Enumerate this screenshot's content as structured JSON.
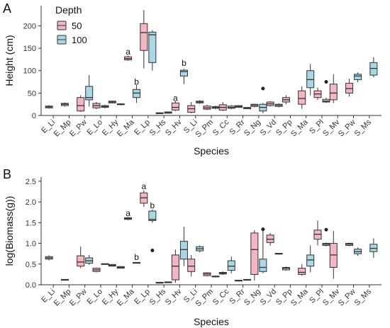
{
  "colors": {
    "series_50": "#f4b6c2",
    "series_100": "#a8d8e6",
    "edge": "#333333"
  },
  "legend": {
    "title": "Depth",
    "labels": [
      "50",
      "100"
    ]
  },
  "chart_data": [
    {
      "panel": "A",
      "type": "box",
      "xlabel": "Species",
      "ylabel": "Height (cm)",
      "ylim": [
        0,
        245
      ],
      "yticks": [
        0,
        50,
        100,
        150,
        200
      ],
      "categories": [
        "E_Li",
        "E_Mp",
        "E_Pw",
        "E_Lo",
        "E_Hy",
        "E_Ma",
        "E_Lp",
        "S_Hs",
        "S_Hv",
        "S_Li",
        "S_Pm",
        "S_Cc",
        "S_Rr",
        "S_Ng",
        "S_Vd",
        "S_Pp",
        "S_Ma",
        "S_Pl",
        "S_Mv",
        "S_Pw",
        "S_Ms"
      ],
      "series": [
        {
          "name": "50",
          "boxes": [
            {
              "category": "E_Li",
              "q1": 17,
              "median": 19,
              "q3": 21,
              "min": 15,
              "max": 23
            },
            {
              "category": "E_Mp",
              "q1": 22,
              "median": 25,
              "q3": 27,
              "min": 20,
              "max": 29
            },
            {
              "category": "E_Pw",
              "q1": 10,
              "median": 22,
              "q3": 40,
              "min": 8,
              "max": 45
            },
            {
              "category": "E_Lo",
              "q1": 17,
              "median": 22,
              "q3": 27,
              "min": 14,
              "max": 30
            },
            {
              "category": "E_Hy",
              "q1": 28,
              "median": 30,
              "q3": 32,
              "min": 27,
              "max": 33
            },
            {
              "category": "E_Ma",
              "q1": 124,
              "median": 127,
              "q3": 131,
              "min": 122,
              "max": 134
            },
            {
              "category": "E_Lp",
              "q1": 145,
              "median": 185,
              "q3": 205,
              "min": 105,
              "max": 235
            },
            {
              "category": "S_Hs",
              "q1": 4,
              "median": 5,
              "q3": 6,
              "min": 3,
              "max": 7
            },
            {
              "category": "S_Hv",
              "q1": 12,
              "median": 18,
              "q3": 28,
              "min": 10,
              "max": 32
            },
            {
              "category": "S_Li",
              "q1": 7,
              "median": 15,
              "q3": 22,
              "min": 5,
              "max": 30
            },
            {
              "category": "S_Pm",
              "q1": 14,
              "median": 17,
              "q3": 21,
              "min": 12,
              "max": 24
            },
            {
              "category": "S_Cc",
              "q1": 12,
              "median": 18,
              "q3": 24,
              "min": 10,
              "max": 30
            },
            {
              "category": "S_Rr",
              "q1": 18,
              "median": 20,
              "q3": 22,
              "min": 17,
              "max": 23
            },
            {
              "category": "S_Ng",
              "q1": 20,
              "median": 23,
              "q3": 25,
              "min": 18,
              "max": 26
            },
            {
              "category": "S_Vd",
              "q1": 22,
              "median": 26,
              "q3": 30,
              "min": 20,
              "max": 32
            },
            {
              "category": "S_Pp",
              "q1": 30,
              "median": 35,
              "q3": 40,
              "min": 25,
              "max": 45
            },
            {
              "category": "S_Ma",
              "q1": 25,
              "median": 38,
              "q3": 55,
              "min": 15,
              "max": 65
            },
            {
              "category": "S_Pl",
              "q1": 40,
              "median": 48,
              "q3": 55,
              "min": 35,
              "max": 62
            },
            {
              "category": "S_Mv",
              "q1": 35,
              "median": 50,
              "q3": 70,
              "min": 28,
              "max": 92
            },
            {
              "category": "S_Pw",
              "q1": 50,
              "median": 60,
              "q3": 72,
              "min": 42,
              "max": 82
            },
            {
              "category": "S_Ms",
              "q1": 0,
              "median": 0,
              "q3": 0,
              "min": 0,
              "max": 0,
              "absent": true
            }
          ]
        },
        {
          "name": "100",
          "boxes": [
            {
              "category": "E_Li",
              "absent": true
            },
            {
              "category": "E_Mp",
              "absent": true
            },
            {
              "category": "E_Pw",
              "q1": 35,
              "median": 40,
              "q3": 65,
              "min": 20,
              "max": 90
            },
            {
              "category": "E_Lo",
              "q1": 18,
              "median": 20,
              "q3": 22,
              "min": 16,
              "max": 24
            },
            {
              "category": "E_Hy",
              "q1": 24,
              "median": 25,
              "q3": 26,
              "min": 23,
              "max": 27
            },
            {
              "category": "E_Ma",
              "q1": 40,
              "median": 50,
              "q3": 58,
              "min": 28,
              "max": 68
            },
            {
              "category": "E_Lp",
              "q1": 118,
              "median": 180,
              "q3": 186,
              "min": 100,
              "max": 190
            },
            {
              "category": "S_Hs",
              "q1": 5,
              "median": 6,
              "q3": 8,
              "min": 4,
              "max": 9
            },
            {
              "category": "S_Hv",
              "q1": 88,
              "median": 98,
              "q3": 101,
              "min": 70,
              "max": 104
            },
            {
              "category": "S_Li",
              "q1": 28,
              "median": 30,
              "q3": 32,
              "min": 26,
              "max": 34
            },
            {
              "category": "S_Pm",
              "q1": 16,
              "median": 18,
              "q3": 20,
              "min": 14,
              "max": 22
            },
            {
              "category": "S_Cc",
              "q1": 16,
              "median": 18,
              "q3": 21,
              "min": 14,
              "max": 23
            },
            {
              "category": "S_Rr",
              "q1": 15,
              "median": 16,
              "q3": 18,
              "min": 14,
              "max": 19
            },
            {
              "category": "S_Ng",
              "q1": 10,
              "median": 18,
              "q3": 25,
              "min": 5,
              "max": 28,
              "outliers": [
                60
              ]
            },
            {
              "category": "S_Vd",
              "q1": 20,
              "median": 23,
              "q3": 25,
              "min": 18,
              "max": 27
            },
            {
              "category": "S_Pp",
              "absent": true
            },
            {
              "category": "S_Ma",
              "q1": 62,
              "median": 80,
              "q3": 100,
              "min": 45,
              "max": 115
            },
            {
              "category": "S_Pl",
              "q1": 30,
              "median": 32,
              "q3": 36,
              "min": 28,
              "max": 40,
              "outliers": [
                75
              ]
            },
            {
              "category": "S_Mv",
              "absent": true
            },
            {
              "category": "S_Pw",
              "q1": 80,
              "median": 88,
              "q3": 92,
              "min": 74,
              "max": 96
            },
            {
              "category": "S_Ms",
              "q1": 90,
              "median": 105,
              "q3": 118,
              "min": 85,
              "max": 130
            }
          ]
        }
      ],
      "annotations": [
        {
          "category": "E_Ma",
          "series": "50",
          "text": "a",
          "value": 142
        },
        {
          "category": "E_Ma",
          "series": "100",
          "text": "b",
          "value": 75
        },
        {
          "category": "S_Hv",
          "series": "50",
          "text": "a",
          "value": 39
        },
        {
          "category": "S_Hv",
          "series": "100",
          "text": "b",
          "value": 117
        }
      ]
    },
    {
      "panel": "B",
      "type": "box",
      "xlabel": "Species",
      "ylabel": "log(Biomass(g))",
      "ylim": [
        0,
        2.6
      ],
      "yticks": [
        0.0,
        0.5,
        1.0,
        1.5,
        2.0,
        2.5
      ],
      "categories": [
        "E_Li",
        "E_Mp",
        "E_Pw",
        "E_Lo",
        "E_Hy",
        "E_Ma",
        "E_Lp",
        "S_Hs",
        "S_Hv",
        "S_Li",
        "S_Pm",
        "S_Cc",
        "S_Rr",
        "S_Ng",
        "S_Vd",
        "S_Pp",
        "S_Ma",
        "S_Pl",
        "S_Mv",
        "S_Pw",
        "S_Ms"
      ],
      "series": [
        {
          "name": "50",
          "boxes": [
            {
              "category": "E_Li",
              "q1": 0.62,
              "median": 0.65,
              "q3": 0.68,
              "min": 0.59,
              "max": 0.71
            },
            {
              "category": "E_Mp",
              "q1": 0.11,
              "median": 0.12,
              "q3": 0.13,
              "min": 0.11,
              "max": 0.13
            },
            {
              "category": "E_Pw",
              "q1": 0.45,
              "median": 0.55,
              "q3": 0.7,
              "min": 0.4,
              "max": 0.92
            },
            {
              "category": "E_Lo",
              "q1": 0.32,
              "median": 0.36,
              "q3": 0.4,
              "min": 0.3,
              "max": 0.42
            },
            {
              "category": "E_Hy",
              "q1": 0.45,
              "median": 0.47,
              "q3": 0.49,
              "min": 0.44,
              "max": 0.5
            },
            {
              "category": "E_Ma",
              "q1": 1.58,
              "median": 1.6,
              "q3": 1.62,
              "min": 1.56,
              "max": 1.64
            },
            {
              "category": "E_Lp",
              "q1": 1.97,
              "median": 2.1,
              "q3": 2.22,
              "min": 1.88,
              "max": 2.28
            },
            {
              "category": "S_Hs",
              "q1": 0.04,
              "median": 0.05,
              "q3": 0.06,
              "min": 0.03,
              "max": 0.07
            },
            {
              "category": "S_Hv",
              "q1": 0.12,
              "median": 0.45,
              "q3": 0.72,
              "min": 0.05,
              "max": 0.85
            },
            {
              "category": "S_Li",
              "q1": 0.32,
              "median": 0.45,
              "q3": 0.62,
              "min": 0.2,
              "max": 0.72
            },
            {
              "category": "S_Pm",
              "q1": 0.22,
              "median": 0.26,
              "q3": 0.29,
              "min": 0.2,
              "max": 0.31
            },
            {
              "category": "S_Cc",
              "q1": 0.26,
              "median": 0.28,
              "q3": 0.3,
              "min": 0.24,
              "max": 0.32
            },
            {
              "category": "S_Rr",
              "q1": 0.09,
              "median": 0.1,
              "q3": 0.11,
              "min": 0.08,
              "max": 0.12
            },
            {
              "category": "S_Ng",
              "q1": 0.25,
              "median": 0.85,
              "q3": 1.25,
              "min": 0.1,
              "max": 1.32
            },
            {
              "category": "S_Vd",
              "q1": 1.02,
              "median": 1.1,
              "q3": 1.2,
              "min": 0.95,
              "max": 1.25
            },
            {
              "category": "S_Pp",
              "q1": 0.36,
              "median": 0.4,
              "q3": 0.42,
              "min": 0.34,
              "max": 0.44
            },
            {
              "category": "S_Ma",
              "q1": 0.25,
              "median": 0.3,
              "q3": 0.4,
              "min": 0.22,
              "max": 0.5
            },
            {
              "category": "S_Pl",
              "q1": 1.1,
              "median": 1.22,
              "q3": 1.32,
              "min": 0.95,
              "max": 1.55
            },
            {
              "category": "S_Mv",
              "q1": 0.42,
              "median": 0.72,
              "q3": 1.0,
              "min": 0.15,
              "max": 1.3
            },
            {
              "category": "S_Pw",
              "q1": 0.95,
              "median": 0.98,
              "q3": 1.0,
              "min": 0.93,
              "max": 1.02
            },
            {
              "category": "S_Ms",
              "absent": true
            }
          ]
        },
        {
          "name": "100",
          "boxes": [
            {
              "category": "E_Li",
              "absent": true
            },
            {
              "category": "E_Mp",
              "absent": true
            },
            {
              "category": "E_Pw",
              "q1": 0.52,
              "median": 0.58,
              "q3": 0.65,
              "min": 0.48,
              "max": 0.72
            },
            {
              "category": "E_Lo",
              "q1": 0.49,
              "median": 0.5,
              "q3": 0.51,
              "min": 0.49,
              "max": 0.51
            },
            {
              "category": "E_Hy",
              "q1": 0.4,
              "median": 0.42,
              "q3": 0.44,
              "min": 0.39,
              "max": 0.45
            },
            {
              "category": "E_Ma",
              "q1": 0.52,
              "median": 0.53,
              "q3": 0.54,
              "min": 0.52,
              "max": 0.54
            },
            {
              "category": "E_Lp",
              "q1": 1.55,
              "median": 1.58,
              "q3": 1.78,
              "min": 1.5,
              "max": 1.82,
              "outliers": [
                0.83
              ]
            },
            {
              "category": "S_Hs",
              "q1": 0.05,
              "median": 0.06,
              "q3": 0.07,
              "min": 0.05,
              "max": 0.08
            },
            {
              "category": "S_Hv",
              "q1": 0.62,
              "median": 0.85,
              "q3": 1.05,
              "min": 0.45,
              "max": 1.4
            },
            {
              "category": "S_Li",
              "q1": 0.82,
              "median": 0.87,
              "q3": 0.92,
              "min": 0.78,
              "max": 0.95
            },
            {
              "category": "S_Pm",
              "q1": 0.19,
              "median": 0.2,
              "q3": 0.21,
              "min": 0.18,
              "max": 0.22
            },
            {
              "category": "S_Cc",
              "q1": 0.35,
              "median": 0.45,
              "q3": 0.58,
              "min": 0.28,
              "max": 0.68
            },
            {
              "category": "S_Rr",
              "q1": 0.11,
              "median": 0.12,
              "q3": 0.13,
              "min": 0.1,
              "max": 0.14
            },
            {
              "category": "S_Ng",
              "q1": 0.32,
              "median": 0.42,
              "q3": 0.62,
              "min": 0.28,
              "max": 1.3,
              "outliers": [
                1.34
              ]
            },
            {
              "category": "S_Vd",
              "q1": 0.74,
              "median": 0.75,
              "q3": 0.76,
              "min": 0.73,
              "max": 0.77
            },
            {
              "category": "S_Pp",
              "absent": true
            },
            {
              "category": "S_Ma",
              "q1": 0.45,
              "median": 0.6,
              "q3": 0.72,
              "min": 0.3,
              "max": 0.95
            },
            {
              "category": "S_Pl",
              "q1": 0.95,
              "median": 0.98,
              "q3": 1.0,
              "min": 0.93,
              "max": 1.02,
              "outliers": [
                1.33
              ]
            },
            {
              "category": "S_Mv",
              "absent": true
            },
            {
              "category": "S_Pw",
              "q1": 0.75,
              "median": 0.8,
              "q3": 0.86,
              "min": 0.7,
              "max": 0.9
            },
            {
              "category": "S_Ms",
              "q1": 0.8,
              "median": 0.88,
              "q3": 0.98,
              "min": 0.65,
              "max": 1.12
            }
          ]
        }
      ],
      "annotations": [
        {
          "category": "E_Ma",
          "series": "50",
          "text": "a",
          "value": 1.73
        },
        {
          "category": "E_Ma",
          "series": "100",
          "text": "b",
          "value": 0.67
        },
        {
          "category": "E_Lp",
          "series": "50",
          "text": "a",
          "value": 2.38
        },
        {
          "category": "E_Lp",
          "series": "100",
          "text": "b",
          "value": 1.92
        }
      ]
    }
  ]
}
